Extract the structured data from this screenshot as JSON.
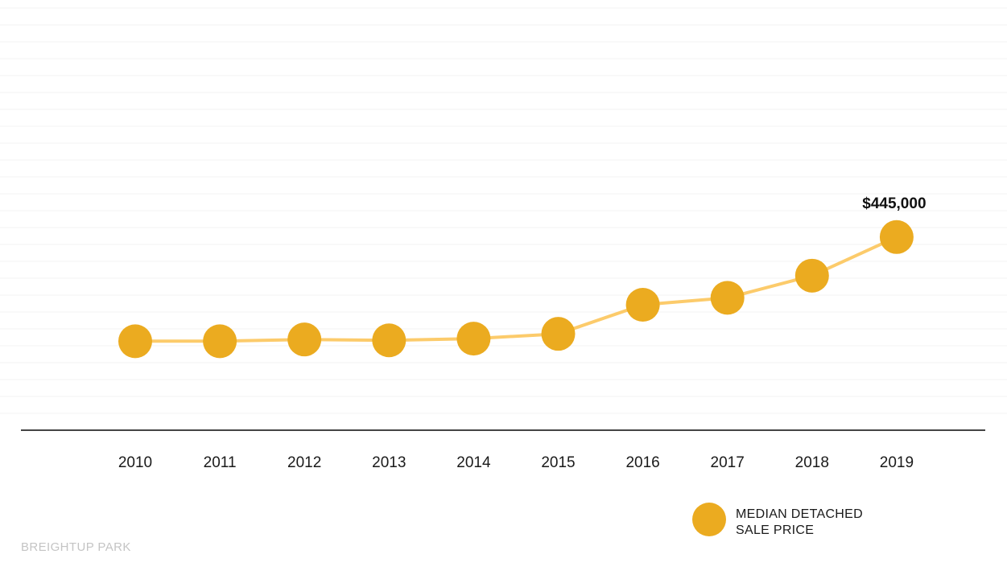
{
  "chart_data": {
    "type": "line",
    "title": "",
    "xlabel": "",
    "ylabel": "",
    "categories": [
      "2010",
      "2011",
      "2012",
      "2013",
      "2014",
      "2015",
      "2016",
      "2017",
      "2018",
      "2019"
    ],
    "series": [
      {
        "name": "MEDIAN DETACHED SALE PRICE",
        "values": [
          205000,
          205000,
          209000,
          207000,
          211000,
          222000,
          289000,
          305000,
          356000,
          445000
        ]
      }
    ],
    "ylim": [
      0,
      980000
    ],
    "grid": true,
    "legend_position": "bottom-right",
    "annotations": [
      {
        "category": "2019",
        "text": "$445,000"
      }
    ]
  },
  "legend": {
    "line1": "MEDIAN DETACHED",
    "line2": "SALE PRICE"
  },
  "source": "BREIGHTUP PARK",
  "colors": {
    "marker": "#ebab20",
    "line": "#fccb6b",
    "grid": "#f3f3f3",
    "axis": "#444444",
    "source": "#c4c4c4"
  }
}
